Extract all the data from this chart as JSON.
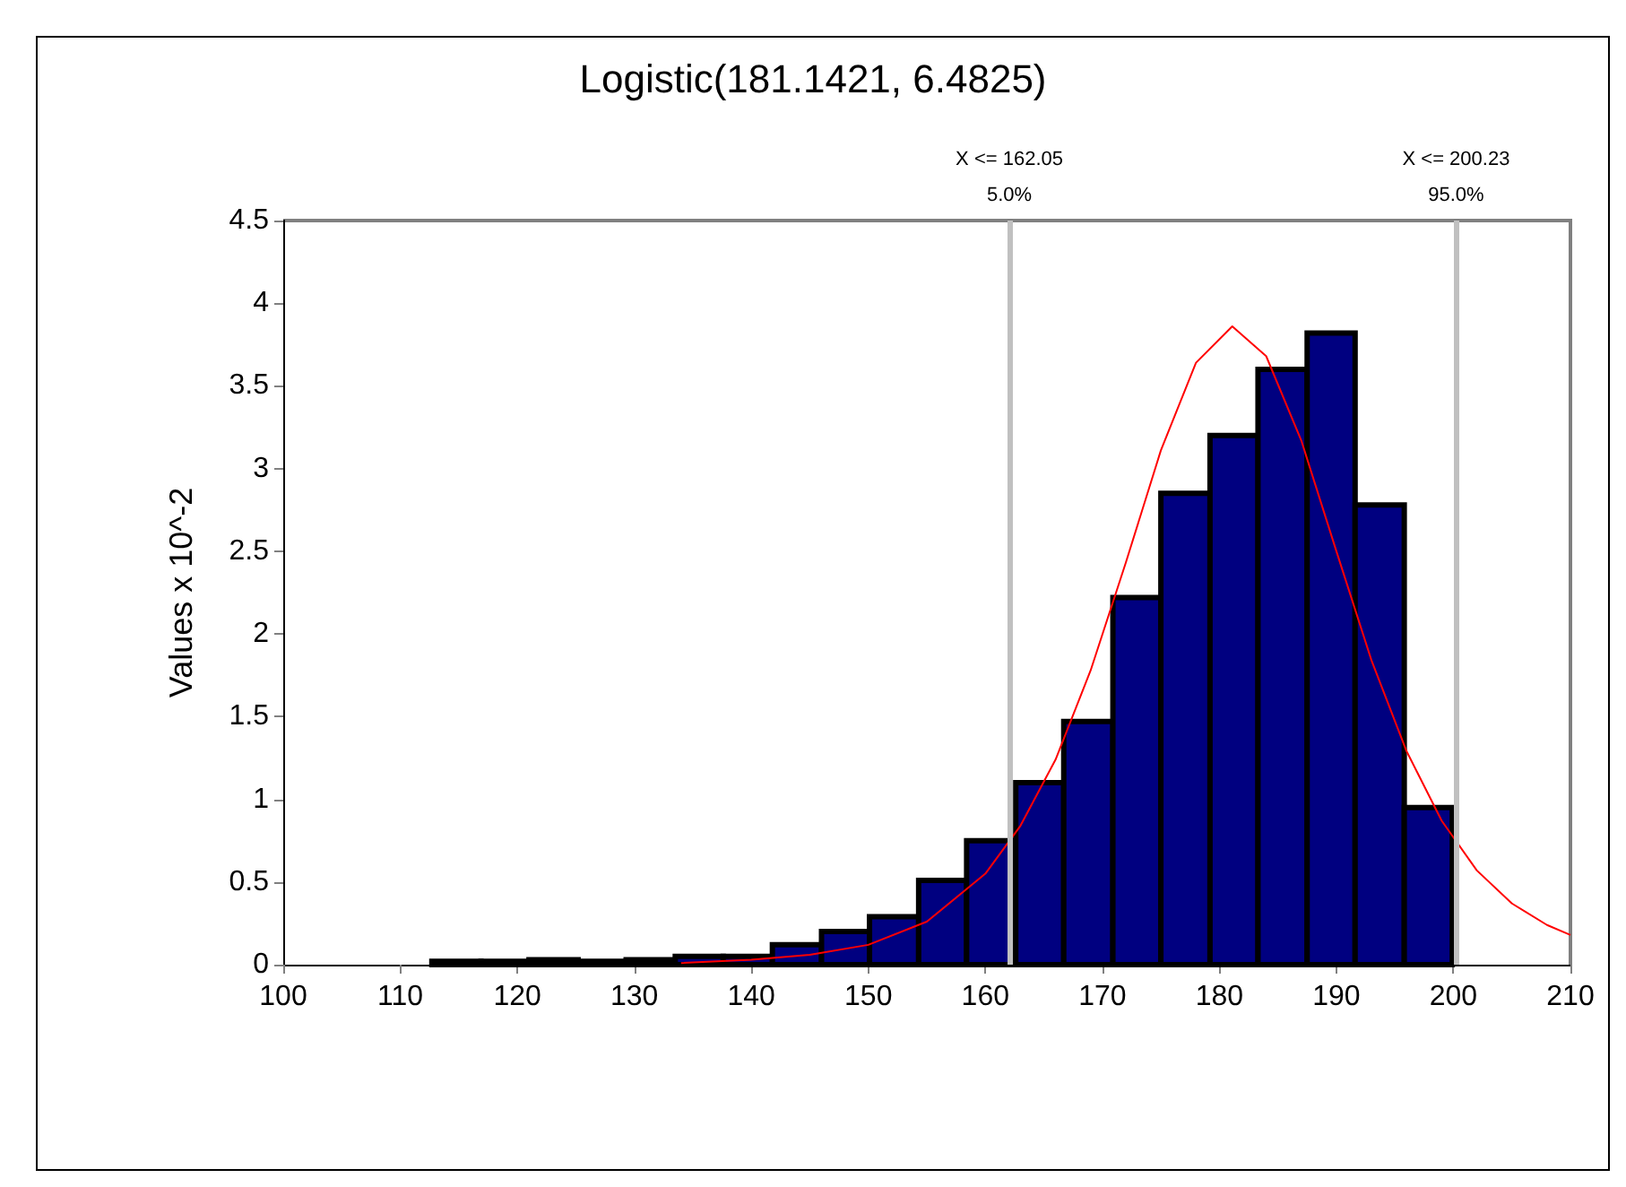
{
  "chart_data": {
    "type": "histogram",
    "title": "Logistic(181.1421, 6.4825)",
    "ylabel": "Values x 10^-2",
    "bins": [
      112.7,
      116.9,
      121.0,
      125.2,
      129.3,
      133.5,
      137.6,
      141.8,
      146.0,
      150.1,
      154.3,
      158.4,
      162.6,
      166.7,
      170.9,
      175.0,
      179.2,
      183.3,
      187.5,
      191.6,
      195.8,
      199.9
    ],
    "values": [
      0.02,
      0.02,
      0.03,
      0.02,
      0.03,
      0.05,
      0.05,
      0.12,
      0.2,
      0.29,
      0.51,
      0.75,
      1.1,
      1.47,
      2.22,
      2.85,
      3.2,
      3.6,
      3.82,
      2.78,
      0.95
    ],
    "color": "#000080",
    "series": [
      {
        "type": "line",
        "color": "#ff0000",
        "x": [
          134,
          140,
          145,
          150,
          155,
          160,
          163,
          166,
          169,
          172,
          175,
          178,
          181.1,
          184,
          187,
          190,
          193,
          196,
          199,
          202,
          205,
          208,
          210
        ],
        "values": [
          0.01,
          0.03,
          0.06,
          0.12,
          0.26,
          0.55,
          0.84,
          1.24,
          1.78,
          2.43,
          3.11,
          3.64,
          3.86,
          3.68,
          3.17,
          2.5,
          1.84,
          1.29,
          0.87,
          0.57,
          0.37,
          0.24,
          0.18
        ]
      }
    ],
    "marker": "none",
    "xlim": [
      100,
      210
    ],
    "xticks": [
      100,
      110,
      120,
      130,
      140,
      150,
      160,
      170,
      180,
      190,
      200,
      210
    ],
    "ylim": [
      0,
      4.5
    ],
    "yticks": [
      0,
      0.5,
      1,
      1.5,
      2,
      2.5,
      3,
      3.5,
      4,
      4.5
    ],
    "grid": false,
    "ref_lines": [
      {
        "axis": "x",
        "value": 162.05,
        "label": "X <= 162.05\n5.0%",
        "color": "#c0c0c0"
      },
      {
        "axis": "x",
        "value": 200.23,
        "label": "X <= 200.23\n95.0%",
        "color": "#c0c0c0"
      }
    ]
  }
}
